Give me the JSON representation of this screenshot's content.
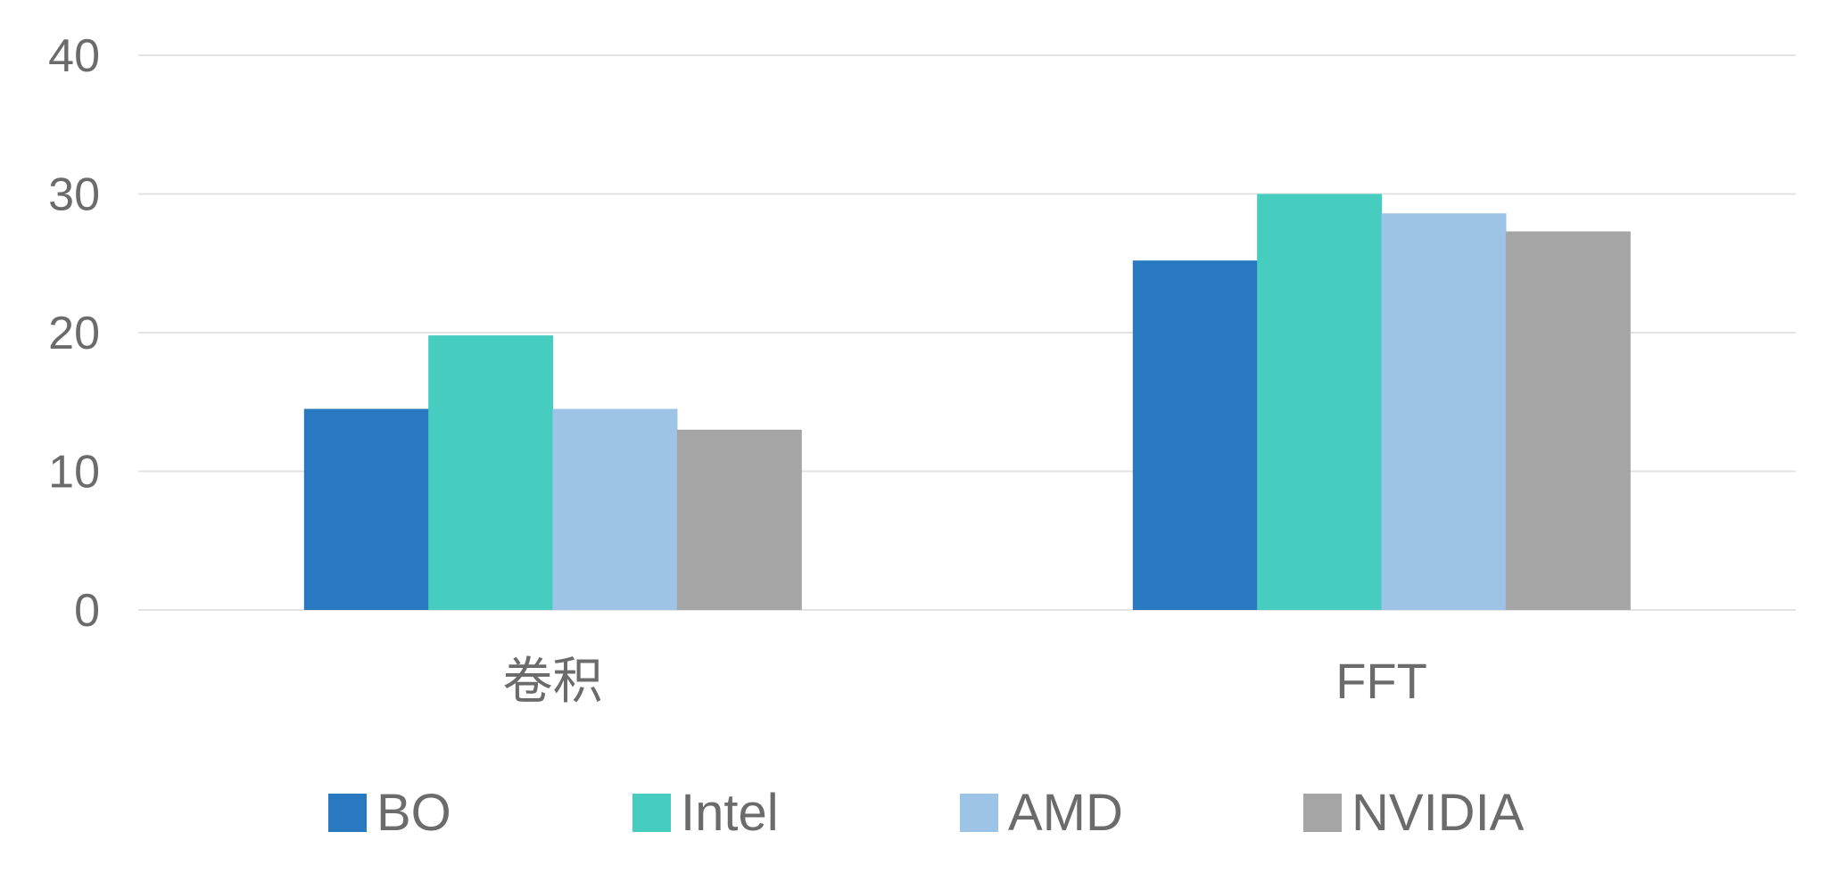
{
  "chart_data": {
    "type": "bar",
    "title": "",
    "xlabel": "",
    "ylabel": "",
    "categories": [
      "卷积",
      "FFT"
    ],
    "series": [
      {
        "name": "BO",
        "values": [
          14.5,
          25.2
        ],
        "color": "#2979c1"
      },
      {
        "name": "Intel",
        "values": [
          19.8,
          30.0
        ],
        "color": "#46cdc0"
      },
      {
        "name": "AMD",
        "values": [
          14.5,
          28.6
        ],
        "color": "#9dc3e6"
      },
      {
        "name": "NVIDIA",
        "values": [
          13.0,
          27.3
        ],
        "color": "#a5a5a5"
      }
    ],
    "ylim": [
      0,
      40
    ],
    "yticks": [
      0,
      10,
      20,
      30,
      40
    ],
    "grid": true,
    "legend_position": "bottom"
  }
}
